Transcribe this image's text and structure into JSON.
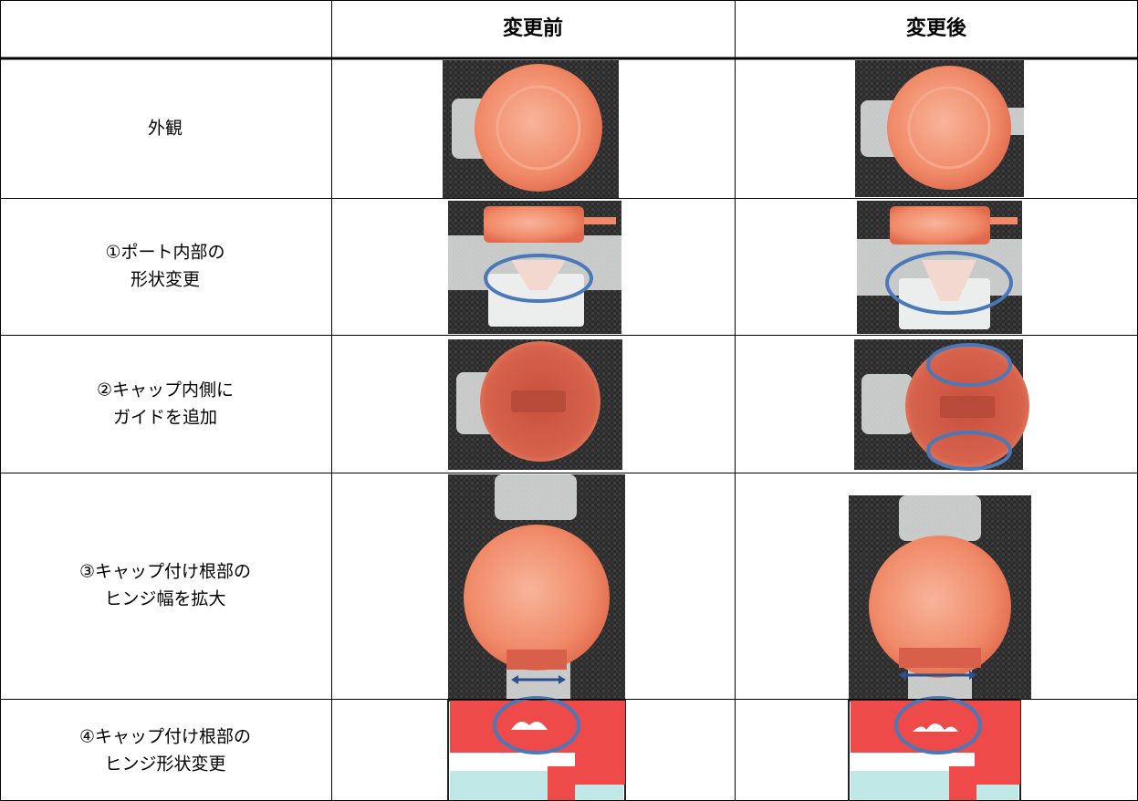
{
  "table": {
    "columns": [
      "変更前",
      "変更後"
    ],
    "rows": [
      {
        "label": [
          "外観"
        ]
      },
      {
        "label": [
          "①ポート内部の",
          "形状変更"
        ]
      },
      {
        "label": [
          "②キャップ内側に",
          "ガイドを追加"
        ]
      },
      {
        "label": [
          "③キャップ付け根部の",
          "ヒンジ幅を拡大"
        ]
      },
      {
        "label": [
          "④キャップ付け根部の",
          "ヒンジ形状変更"
        ]
      }
    ]
  }
}
